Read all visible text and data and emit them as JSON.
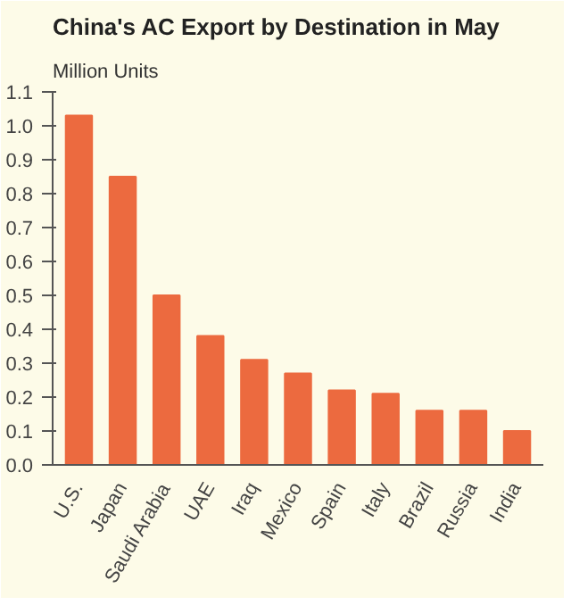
{
  "chart_data": {
    "type": "bar",
    "title": "China's AC Export by Destination in May",
    "ylabel": "Million Units",
    "categories": [
      "U.S.",
      "Japan",
      "Saudi Arabia",
      "UAE",
      "Iraq",
      "Mexico",
      "Spain",
      "Italy",
      "Brazil",
      "Russia",
      "India"
    ],
    "values": [
      1.03,
      0.85,
      0.5,
      0.38,
      0.31,
      0.27,
      0.22,
      0.21,
      0.16,
      0.16,
      0.1
    ],
    "color": "#ec6a3f",
    "ylim": [
      0,
      1.1
    ],
    "yticks": [
      {
        "value": 0,
        "label": "0.0"
      },
      {
        "value": 0.1,
        "label": "0.1"
      },
      {
        "value": 0.2,
        "label": "0.2"
      },
      {
        "value": 0.3,
        "label": "0.3"
      },
      {
        "value": 0.4,
        "label": "0.4"
      },
      {
        "value": 0.5,
        "label": "0.5"
      },
      {
        "value": 0.6,
        "label": "0.6"
      },
      {
        "value": 0.7,
        "label": "0.7"
      },
      {
        "value": 0.8,
        "label": "0.8"
      },
      {
        "value": 0.9,
        "label": "0.9"
      },
      {
        "value": 1.0,
        "label": "1.0"
      },
      {
        "value": 1.1,
        "label": "1.1"
      }
    ],
    "grid": false
  }
}
